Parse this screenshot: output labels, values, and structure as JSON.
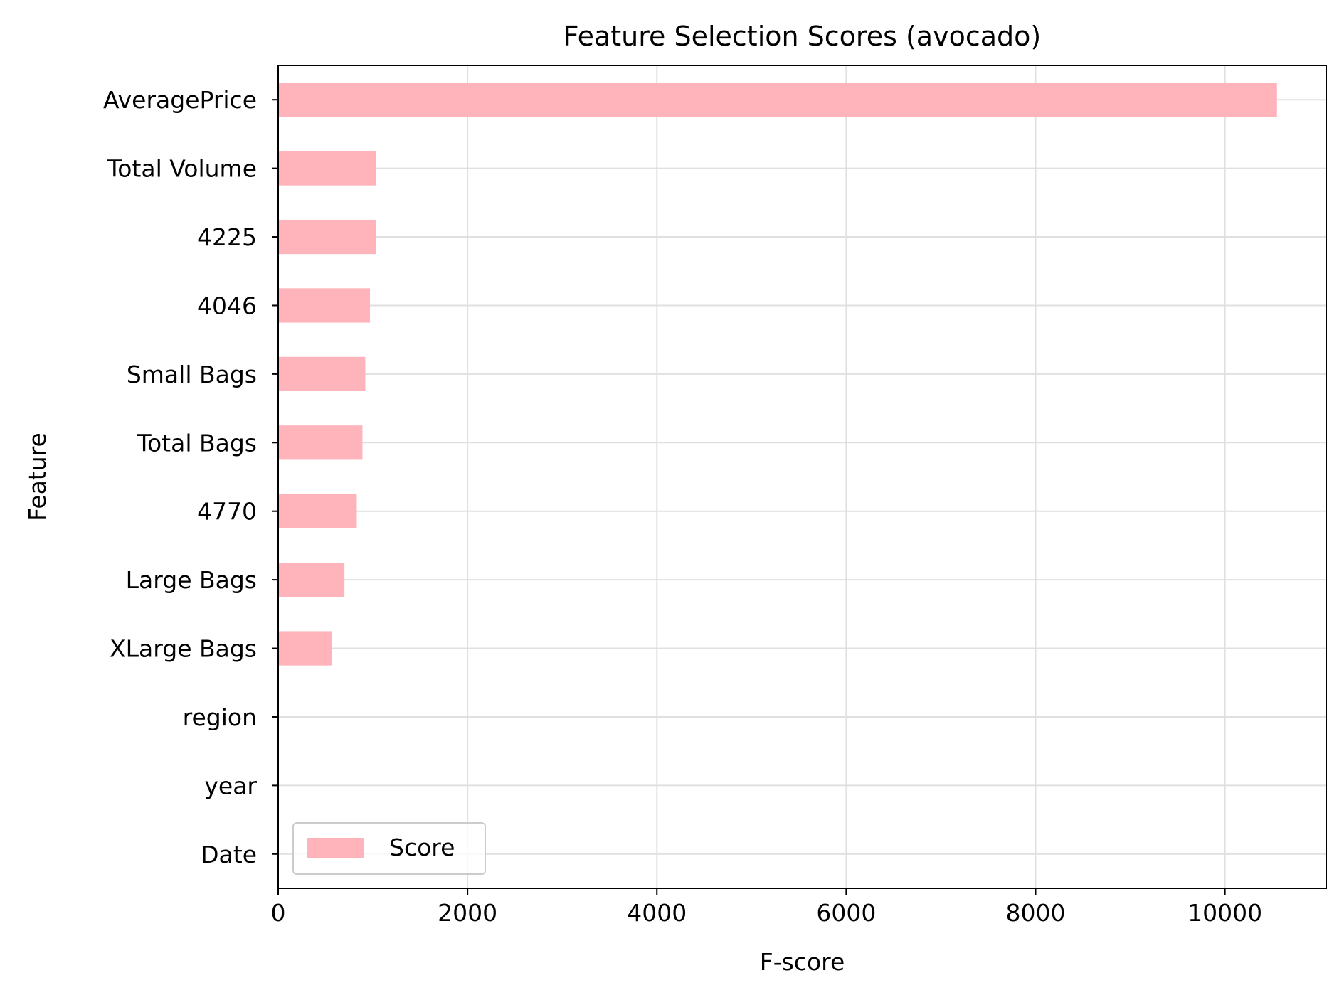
{
  "chart_data": {
    "type": "bar",
    "orientation": "horizontal",
    "title": "Feature Selection Scores (avocado)",
    "xlabel": "F-score",
    "ylabel": "Feature",
    "categories": [
      "AveragePrice",
      "Total Volume",
      "4225",
      "4046",
      "Small Bags",
      "Total Bags",
      "4770",
      "Large Bags",
      "XLarge Bags",
      "region",
      "year",
      "Date"
    ],
    "series": [
      {
        "name": "Score",
        "values": [
          10550,
          1030,
          1030,
          970,
          920,
          890,
          830,
          700,
          570,
          0,
          0,
          0
        ]
      }
    ],
    "xlim": [
      0,
      11070
    ],
    "xticks": [
      0,
      2000,
      4000,
      6000,
      8000,
      10000
    ],
    "xtick_labels": [
      "0",
      "2000",
      "4000",
      "6000",
      "8000",
      "10000"
    ],
    "grid": true,
    "legend_position": "lower-left",
    "bar_color": "#ffb3ba",
    "grid_color": "#e0e0e0"
  }
}
